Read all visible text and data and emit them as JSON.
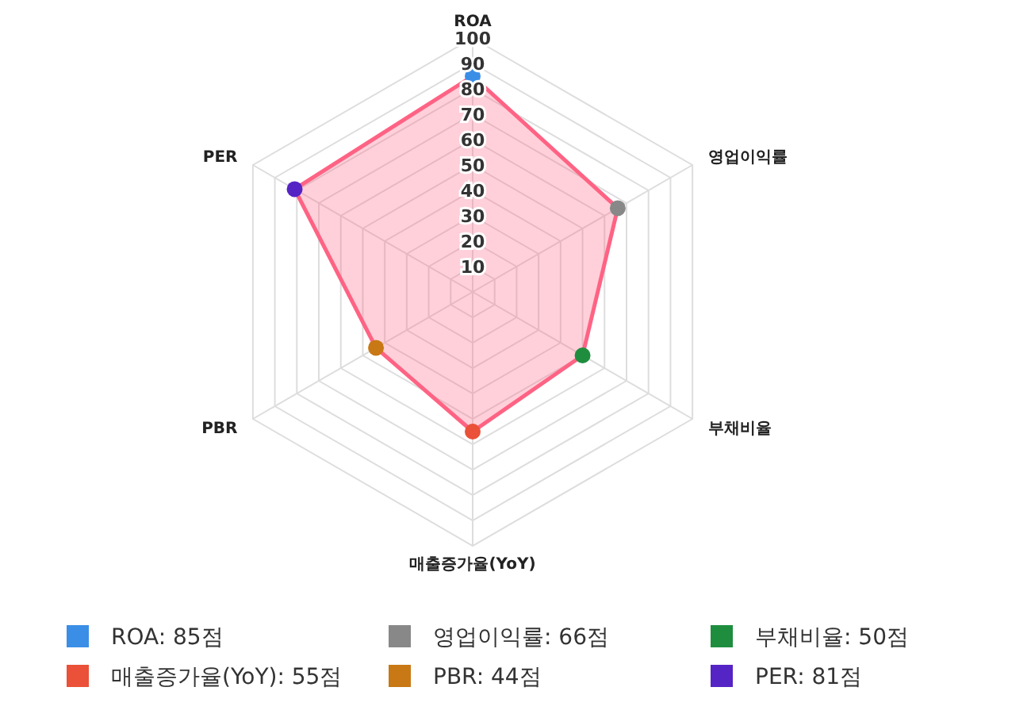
{
  "chart_data": {
    "type": "radar",
    "categories": [
      "ROA",
      "영업이익률",
      "부채비율",
      "매출증가율(YoY)",
      "PBR",
      "PER"
    ],
    "series": [
      {
        "color": "#ff6384",
        "values": [
          85,
          66,
          50,
          55,
          44,
          81
        ],
        "colors": [
          "#3a8ee6",
          "#888888",
          "#1e8e3e",
          "#ea5138",
          "#c87814",
          "#5524c4"
        ]
      }
    ],
    "annotations": [
      "ROA: 85점",
      "영업이익률: 66점",
      "부채비율: 50점",
      "매출증가율(YoY): 55점",
      "PBR: 44점",
      "PER: 81점"
    ],
    "ylim": [
      0,
      100
    ],
    "yticks": [
      10,
      20,
      30,
      40,
      50,
      60,
      70,
      80,
      90,
      100
    ],
    "grid": true,
    "marker": "circle"
  }
}
